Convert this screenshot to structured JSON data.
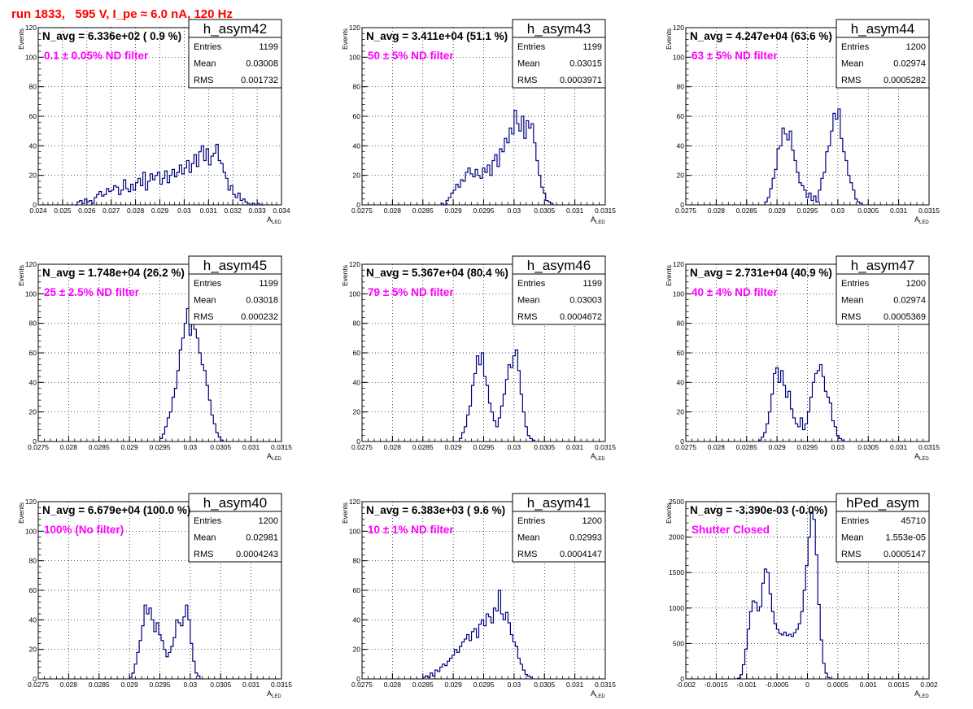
{
  "page": {
    "title": "run 1833,   595 V, I_pe ≈ 6.0 nA, 120 Hz"
  },
  "colors": {
    "histogram": "#00007f",
    "title_red": "#ff0000",
    "annotation_magenta": "#ff00ff",
    "grid": "#000000"
  },
  "chart_data": [
    {
      "type": "histogram",
      "name": "h_asym42",
      "annotation": "N_avg = 6.336e+02 ( 0.9 %)",
      "filter_label": "0.1 ± 0.05% ND filter",
      "stats": [
        {
          "label": "Entries",
          "value": "1199"
        },
        {
          "label": "Mean",
          "value": "0.03008"
        },
        {
          "label": "RMS",
          "value": "0.001732"
        }
      ],
      "xlim": [
        0.024,
        0.034
      ],
      "ylim": [
        0,
        120
      ],
      "xticks": [
        "0.024",
        "0.025",
        "0.026",
        "0.027",
        "0.028",
        "0.029",
        "0.03",
        "0.031",
        "0.032",
        "0.033",
        "0.034"
      ],
      "yticks": [
        "0",
        "20",
        "40",
        "60",
        "80",
        "100",
        "120"
      ],
      "xlabel": "A",
      "xlabel_sub": "LED",
      "ylabel": "Events",
      "grid": true,
      "bins": {
        "start": 0.0255,
        "width": 0.0001,
        "values": [
          0,
          2,
          3,
          1,
          4,
          2,
          3,
          1,
          5,
          7,
          9,
          6,
          7,
          11,
          9,
          10,
          13,
          12,
          7,
          10,
          17,
          11,
          9,
          14,
          10,
          15,
          18,
          13,
          22,
          10,
          16,
          21,
          17,
          20,
          22,
          14,
          18,
          23,
          15,
          20,
          24,
          19,
          22,
          27,
          21,
          25,
          30,
          22,
          28,
          34,
          26,
          36,
          40,
          30,
          38,
          27,
          33,
          35,
          41,
          30,
          28,
          22,
          18,
          10,
          13,
          7,
          5,
          8,
          3,
          4,
          2,
          1,
          0,
          1,
          0,
          1,
          0,
          0
        ]
      }
    },
    {
      "type": "histogram",
      "name": "h_asym43",
      "annotation": "N_avg = 3.411e+04 (51.1 %)",
      "filter_label": "50 ± 5% ND filter",
      "stats": [
        {
          "label": "Entries",
          "value": "1199"
        },
        {
          "label": "Mean",
          "value": "0.03015"
        },
        {
          "label": "RMS",
          "value": "0.0003971"
        }
      ],
      "xlim": [
        0.0275,
        0.0315
      ],
      "ylim": [
        0,
        120
      ],
      "xticks": [
        "0.0275",
        "0.028",
        "0.0285",
        "0.029",
        "0.0295",
        "0.03",
        "0.0305",
        "0.031",
        "0.0315"
      ],
      "yticks": [
        "0",
        "20",
        "40",
        "60",
        "80",
        "100",
        "120"
      ],
      "xlabel": "A",
      "xlabel_sub": "LED",
      "ylabel": "Events",
      "grid": true,
      "bins": {
        "start": 0.0288,
        "width": 4e-05,
        "values": [
          1,
          0,
          3,
          5,
          8,
          10,
          14,
          12,
          17,
          16,
          22,
          25,
          21,
          19,
          24,
          20,
          18,
          25,
          22,
          27,
          20,
          30,
          34,
          26,
          38,
          36,
          45,
          42,
          52,
          48,
          64,
          55,
          50,
          60,
          45,
          57,
          52,
          55,
          42,
          30,
          20,
          12,
          8,
          3,
          2,
          1
        ]
      }
    },
    {
      "type": "histogram",
      "name": "h_asym44",
      "annotation": "N_avg = 4.247e+04 (63.6 %)",
      "filter_label": "63 ± 5% ND filter",
      "stats": [
        {
          "label": "Entries",
          "value": "1200"
        },
        {
          "label": "Mean",
          "value": "0.02974"
        },
        {
          "label": "RMS",
          "value": "0.0005282"
        }
      ],
      "xlim": [
        0.0275,
        0.0315
      ],
      "ylim": [
        0,
        120
      ],
      "xticks": [
        "0.0275",
        "0.028",
        "0.0285",
        "0.029",
        "0.0295",
        "0.03",
        "0.0305",
        "0.031",
        "0.0315"
      ],
      "yticks": [
        "0",
        "20",
        "40",
        "60",
        "80",
        "100",
        "120"
      ],
      "xlabel": "A",
      "xlabel_sub": "LED",
      "ylabel": "Events",
      "grid": true,
      "bins": {
        "start": 0.0288,
        "width": 4e-05,
        "values": [
          2,
          5,
          11,
          18,
          24,
          38,
          40,
          52,
          48,
          44,
          50,
          37,
          30,
          22,
          15,
          13,
          10,
          5,
          8,
          3,
          6,
          2,
          10,
          18,
          22,
          36,
          40,
          50,
          62,
          58,
          65,
          45,
          36,
          30,
          20,
          15,
          10,
          4,
          2,
          1
        ]
      }
    },
    {
      "type": "histogram",
      "name": "h_asym45",
      "annotation": "N_avg = 1.748e+04 (26.2 %)",
      "filter_label": "25 ± 2.5% ND filter",
      "stats": [
        {
          "label": "Entries",
          "value": "1199"
        },
        {
          "label": "Mean",
          "value": "0.03018"
        },
        {
          "label": "RMS",
          "value": "0.000232"
        }
      ],
      "xlim": [
        0.0275,
        0.0315
      ],
      "ylim": [
        0,
        120
      ],
      "xticks": [
        "0.0275",
        "0.028",
        "0.0285",
        "0.029",
        "0.0295",
        "0.03",
        "0.0305",
        "0.031",
        "0.0315"
      ],
      "yticks": [
        "0",
        "20",
        "40",
        "60",
        "80",
        "100",
        "120"
      ],
      "xlabel": "A",
      "xlabel_sub": "LED",
      "ylabel": "Events",
      "grid": true,
      "bins": {
        "start": 0.0295,
        "width": 4e-05,
        "values": [
          2,
          5,
          10,
          16,
          20,
          30,
          36,
          48,
          62,
          70,
          80,
          90,
          72,
          84,
          76,
          70,
          60,
          52,
          48,
          38,
          28,
          18,
          12,
          6,
          3,
          1
        ]
      }
    },
    {
      "type": "histogram",
      "name": "h_asym46",
      "annotation": "N_avg = 5.367e+04 (80.4 %)",
      "filter_label": "79 ± 5% ND filter",
      "stats": [
        {
          "label": "Entries",
          "value": "1199"
        },
        {
          "label": "Mean",
          "value": "0.03003"
        },
        {
          "label": "RMS",
          "value": "0.0004672"
        }
      ],
      "xlim": [
        0.0275,
        0.0315
      ],
      "ylim": [
        0,
        120
      ],
      "xticks": [
        "0.0275",
        "0.028",
        "0.0285",
        "0.029",
        "0.0295",
        "0.03",
        "0.0305",
        "0.031",
        "0.0315"
      ],
      "yticks": [
        "0",
        "20",
        "40",
        "60",
        "80",
        "100",
        "120"
      ],
      "xlabel": "A",
      "xlabel_sub": "LED",
      "ylabel": "Events",
      "grid": true,
      "bins": {
        "start": 0.0291,
        "width": 4e-05,
        "values": [
          2,
          6,
          10,
          18,
          24,
          38,
          46,
          58,
          52,
          60,
          44,
          38,
          26,
          20,
          14,
          10,
          16,
          24,
          32,
          42,
          52,
          50,
          58,
          62,
          48,
          32,
          20,
          10,
          4,
          2,
          1
        ]
      }
    },
    {
      "type": "histogram",
      "name": "h_asym47",
      "annotation": "N_avg = 2.731e+04 (40.9 %)",
      "filter_label": "40 ± 4% ND filter",
      "stats": [
        {
          "label": "Entries",
          "value": "1200"
        },
        {
          "label": "Mean",
          "value": "0.02974"
        },
        {
          "label": "RMS",
          "value": "0.0005369"
        }
      ],
      "xlim": [
        0.0275,
        0.0315
      ],
      "ylim": [
        0,
        120
      ],
      "xticks": [
        "0.0275",
        "0.028",
        "0.0285",
        "0.029",
        "0.0295",
        "0.03",
        "0.0305",
        "0.031",
        "0.0315"
      ],
      "yticks": [
        "0",
        "20",
        "40",
        "60",
        "80",
        "100",
        "120"
      ],
      "xlabel": "A",
      "xlabel_sub": "LED",
      "ylabel": "Events",
      "grid": true,
      "bins": {
        "start": 0.0287,
        "width": 4e-05,
        "values": [
          1,
          3,
          6,
          12,
          20,
          32,
          46,
          50,
          40,
          48,
          38,
          30,
          34,
          22,
          16,
          12,
          10,
          16,
          8,
          12,
          20,
          30,
          40,
          46,
          48,
          52,
          44,
          34,
          30,
          26,
          14,
          10,
          4,
          2,
          1
        ]
      }
    },
    {
      "type": "histogram",
      "name": "h_asym40",
      "annotation": "N_avg = 6.679e+04 (100.0 %)",
      "filter_label": "100% (No filter)",
      "stats": [
        {
          "label": "Entries",
          "value": "1200"
        },
        {
          "label": "Mean",
          "value": "0.02981"
        },
        {
          "label": "RMS",
          "value": "0.0004243"
        }
      ],
      "xlim": [
        0.0275,
        0.0315
      ],
      "ylim": [
        0,
        120
      ],
      "xticks": [
        "0.0275",
        "0.028",
        "0.0285",
        "0.029",
        "0.0295",
        "0.03",
        "0.0305",
        "0.031",
        "0.0315"
      ],
      "yticks": [
        "0",
        "20",
        "40",
        "60",
        "80",
        "100",
        "120"
      ],
      "xlabel": "A",
      "xlabel_sub": "LED",
      "ylabel": "Events",
      "grid": true,
      "bins": {
        "start": 0.029,
        "width": 4e-05,
        "values": [
          1,
          4,
          10,
          18,
          26,
          36,
          50,
          44,
          48,
          40,
          32,
          38,
          30,
          26,
          20,
          15,
          18,
          22,
          28,
          40,
          38,
          36,
          42,
          50,
          40,
          24,
          12,
          4,
          2
        ]
      }
    },
    {
      "type": "histogram",
      "name": "h_asym41",
      "annotation": "N_avg = 6.383e+03 ( 9.6 %)",
      "filter_label": "10 ± 1% ND filter",
      "stats": [
        {
          "label": "Entries",
          "value": "1200"
        },
        {
          "label": "Mean",
          "value": "0.02993"
        },
        {
          "label": "RMS",
          "value": "0.0004147"
        }
      ],
      "xlim": [
        0.0275,
        0.0315
      ],
      "ylim": [
        0,
        120
      ],
      "xticks": [
        "0.0275",
        "0.028",
        "0.0285",
        "0.029",
        "0.0295",
        "0.03",
        "0.0305",
        "0.031",
        "0.0315"
      ],
      "yticks": [
        "0",
        "20",
        "40",
        "60",
        "80",
        "100",
        "120"
      ],
      "xlabel": "A",
      "xlabel_sub": "LED",
      "ylabel": "Events",
      "grid": true,
      "bins": {
        "start": 0.0285,
        "width": 4e-05,
        "values": [
          1,
          2,
          1,
          4,
          2,
          6,
          5,
          8,
          10,
          9,
          12,
          14,
          16,
          20,
          18,
          22,
          25,
          27,
          30,
          26,
          32,
          34,
          28,
          37,
          40,
          36,
          44,
          42,
          38,
          48,
          46,
          60,
          44,
          40,
          45,
          38,
          30,
          25,
          22,
          14,
          10,
          6,
          3,
          2,
          1
        ]
      }
    },
    {
      "type": "histogram",
      "name": "hPed_asym",
      "annotation": "N_avg = -3.390e-03 (-0.0%)",
      "filter_label": "Shutter Closed",
      "stats": [
        {
          "label": "Entries",
          "value": "45710"
        },
        {
          "label": "Mean",
          "value": "1.553e-05"
        },
        {
          "label": "RMS",
          "value": "0.0005147"
        }
      ],
      "xlim": [
        -0.002,
        0.002
      ],
      "ylim": [
        0,
        2500
      ],
      "xticks": [
        "-0.002",
        "-0.0015",
        "-0.001",
        "-0.0005",
        "0",
        "0.0005",
        "0.001",
        "0.0015",
        "0.002"
      ],
      "yticks": [
        "0",
        "500",
        "1000",
        "1500",
        "2000",
        "2500"
      ],
      "xlabel": "A",
      "xlabel_sub": "LED",
      "ylabel": "Events",
      "grid": true,
      "bins": {
        "start": -0.00115,
        "width": 4e-05,
        "values": [
          10,
          60,
          200,
          420,
          700,
          950,
          1100,
          1080,
          960,
          1020,
          1350,
          1550,
          1500,
          1200,
          950,
          780,
          700,
          640,
          620,
          660,
          610,
          630,
          600,
          650,
          700,
          780,
          950,
          1250,
          1600,
          2000,
          2350,
          2250,
          1750,
          1050,
          550,
          220,
          80,
          20
        ]
      }
    }
  ]
}
